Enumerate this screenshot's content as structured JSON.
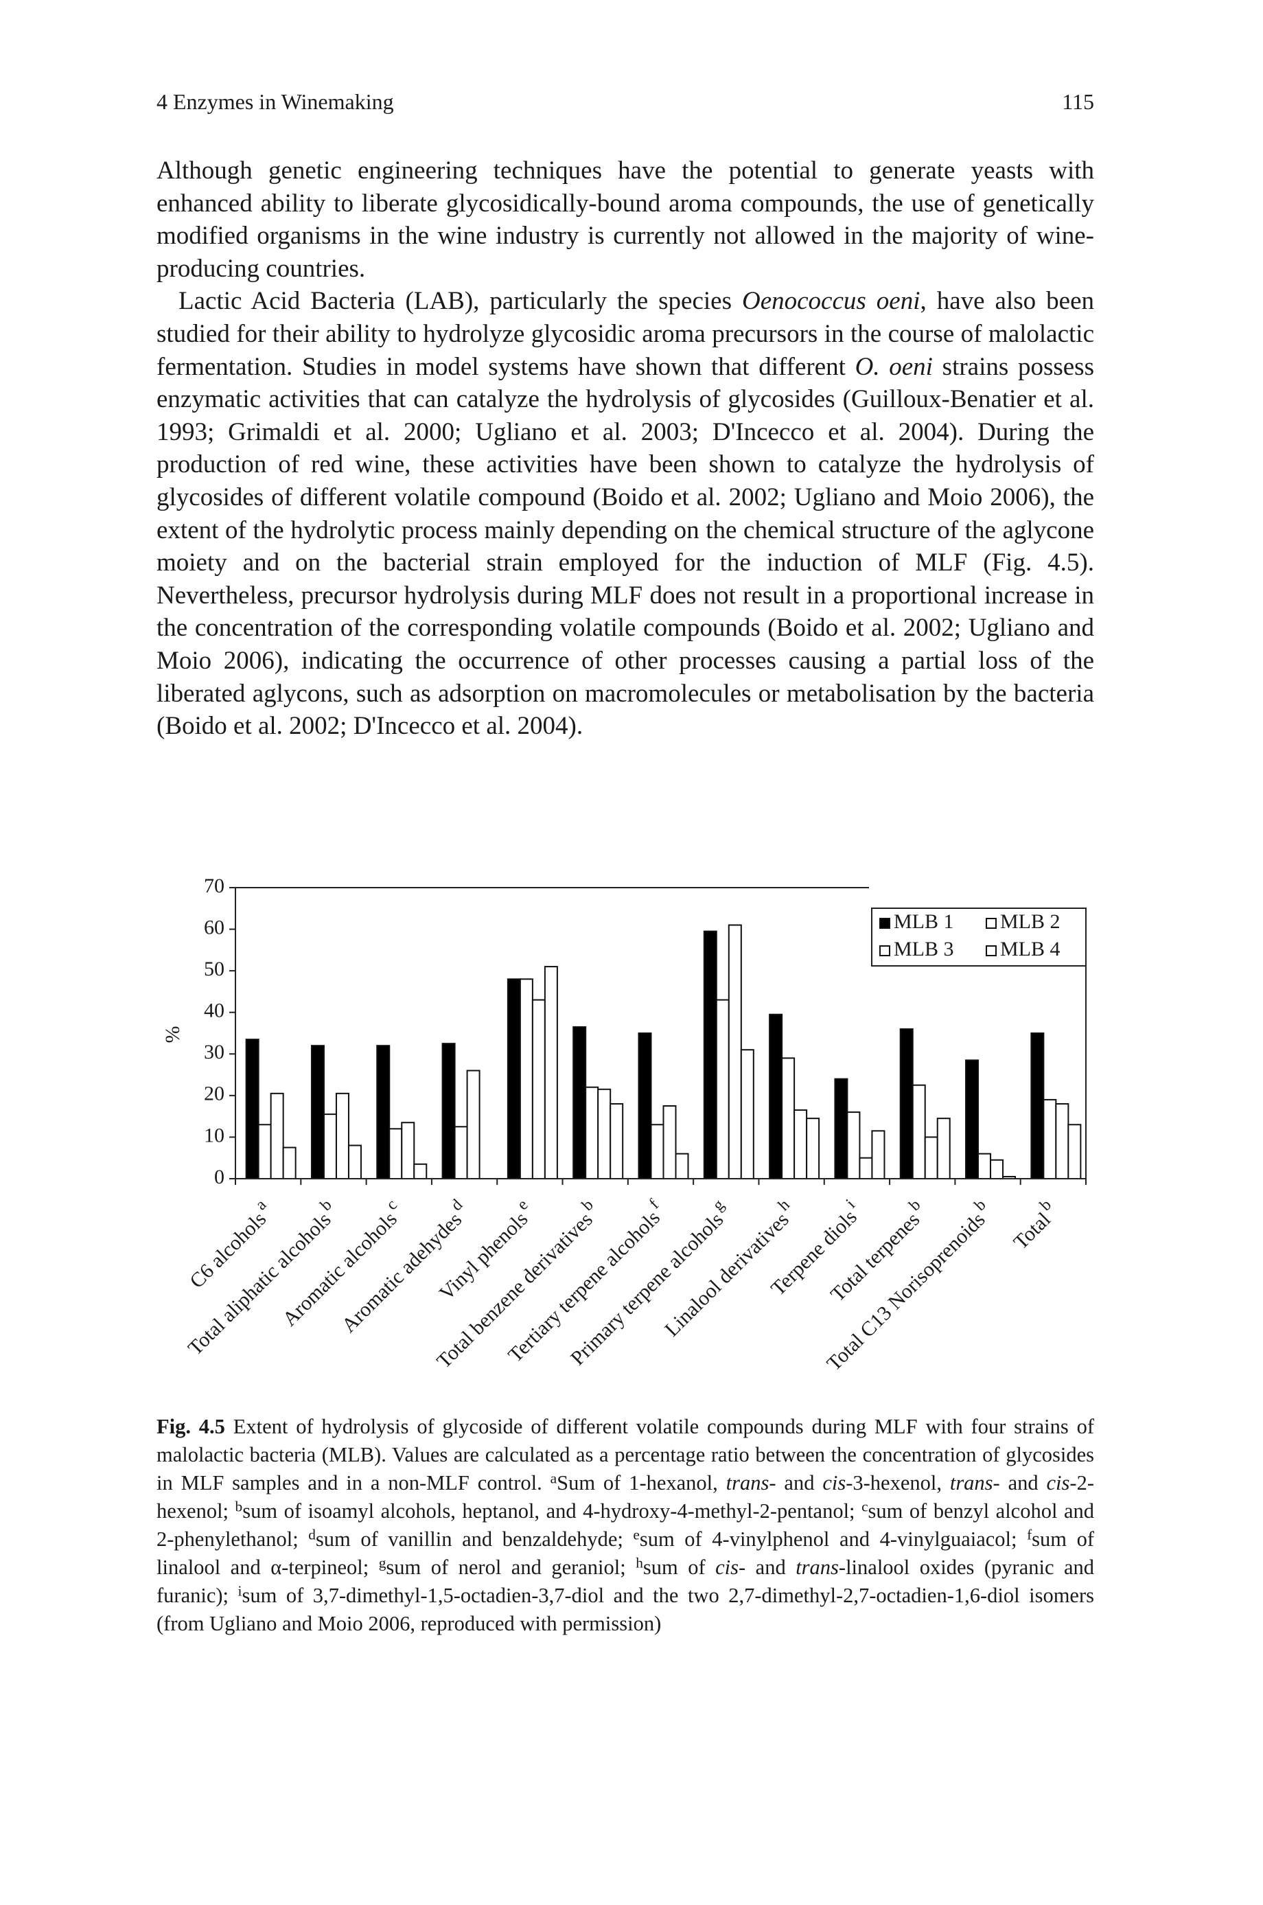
{
  "header": {
    "chapter": "4 Enzymes in Winemaking",
    "page": "115"
  },
  "paragraphs": [
    [
      "Although genetic engineering techniques have the potential to generate yeasts with enhanced ability to liberate glycosidically-bound aroma compounds, the use of genetically modified organisms in the wine industry is currently not allowed in the majority of wine-producing countries."
    ],
    [
      "Lactic Acid Bacteria (LAB), particularly the species ",
      "Oenococcus oeni",
      ", have also been studied for their ability to hydrolyze glycosidic aroma precursors in the course of malolactic fermentation. Studies in model systems have shown that different ",
      "O. oeni",
      " strains possess enzymatic activities that can catalyze the hydrolysis of glycosides (Guilloux-Benatier et al. 1993; Grimaldi et al. 2000; Ugliano et al. 2003; D'Incecco et al. 2004). During the production of red wine, these activities have been shown to catalyze the hydrolysis of glycosides of different volatile compound (Boido et al. 2002; Ugliano and Moio 2006), the extent of the hydrolytic process mainly depending on the chemical structure of the aglycone moiety and on the bacterial strain employed for the induction of MLF (Fig. 4.5). Nevertheless, precursor hydrolysis during MLF does not result in a proportional increase in the concentration of the corresponding volatile compounds (Boido et al. 2002; Ugliano and Moio 2006), indicating the occurrence of other processes causing a partial loss of the liberated aglycons, such as adsorption on macromolecules or metabolisation by the bacteria (Boido et al. 2002; D'Incecco et al. 2004)."
    ]
  ],
  "chart_data": {
    "type": "bar",
    "y_label": "%",
    "categories": [
      "C6 alcohols",
      "Total aliphatic alcohols",
      "Aromatic alcohols",
      "Aromatic adehydes",
      "Vinyl phenols",
      "Total benzene derivatives",
      "Tertiary terpene alcohols",
      "Primary terpene alcohols",
      "Linalool derivatives",
      "Terpene diols",
      "Total terpenes",
      "Total C13 Norisoprenoids",
      "Total"
    ],
    "category_notes": [
      "a",
      "b",
      "c",
      "d",
      "e",
      "b",
      "f",
      "g",
      "h",
      "i",
      "b",
      "b",
      "b"
    ],
    "series": [
      {
        "name": "MLB 1",
        "color": "#000000",
        "values": [
          33.5,
          32,
          32,
          32.5,
          48,
          36.5,
          35,
          59.5,
          39.5,
          24,
          36,
          28.5,
          35
        ]
      },
      {
        "name": "MLB 2",
        "color": "#ffffff",
        "values": [
          13,
          15.5,
          12,
          12.5,
          48,
          22,
          13,
          43,
          29,
          16,
          22.5,
          6,
          19
        ]
      },
      {
        "name": "MLB 3",
        "color": "#ffffff",
        "values": [
          20.5,
          20.5,
          13.5,
          26,
          43,
          21.5,
          17.5,
          61,
          16.5,
          5,
          10,
          4.5,
          18
        ]
      },
      {
        "name": "MLB 4",
        "color": "#ffffff",
        "values": [
          7.5,
          8,
          3.5,
          0,
          51,
          18,
          6,
          31,
          14.5,
          11.5,
          14.5,
          0.5,
          13
        ]
      }
    ],
    "ylim": [
      0,
      70
    ],
    "yticks": [
      0,
      10,
      20,
      30,
      40,
      50,
      60,
      70
    ],
    "legend": "top-right"
  },
  "caption": [
    "Fig. 4.5",
    " Extent of hydrolysis of glycoside of different volatile compounds during MLF with four strains of malolactic bacteria (MLB). Values are calculated as a percentage ratio between the concentration of glycosides in MLF samples and in a non-MLF control. ",
    "a",
    "Sum of 1-hexanol, ",
    "trans-",
    " and ",
    "cis",
    "-3-hexenol, ",
    "trans-",
    " and ",
    "cis",
    "-2-hexenol; ",
    "b",
    "sum of isoamyl alcohols, heptanol, and 4-hydroxy-4-methyl-2-pentanol; ",
    "c",
    "sum of benzyl alcohol and 2-phenylethanol; ",
    "d",
    "sum of vanillin and benzaldehyde; ",
    "e",
    "sum of 4-vinylphenol and 4-vinylguaiacol; ",
    "f",
    "sum of linalool and α-terpineol; ",
    "g",
    "sum of nerol and geraniol; ",
    "h",
    "sum of ",
    "cis-",
    " and ",
    "trans",
    "-linalool oxides (pyranic and furanic); ",
    "i",
    "sum of 3,7-dimethyl-1,5-octadien-3,7-diol and the two 2,7-dimethyl-2,7-octadien-1,6-diol isomers (from Ugliano and Moio 2006, reproduced with permission)"
  ]
}
